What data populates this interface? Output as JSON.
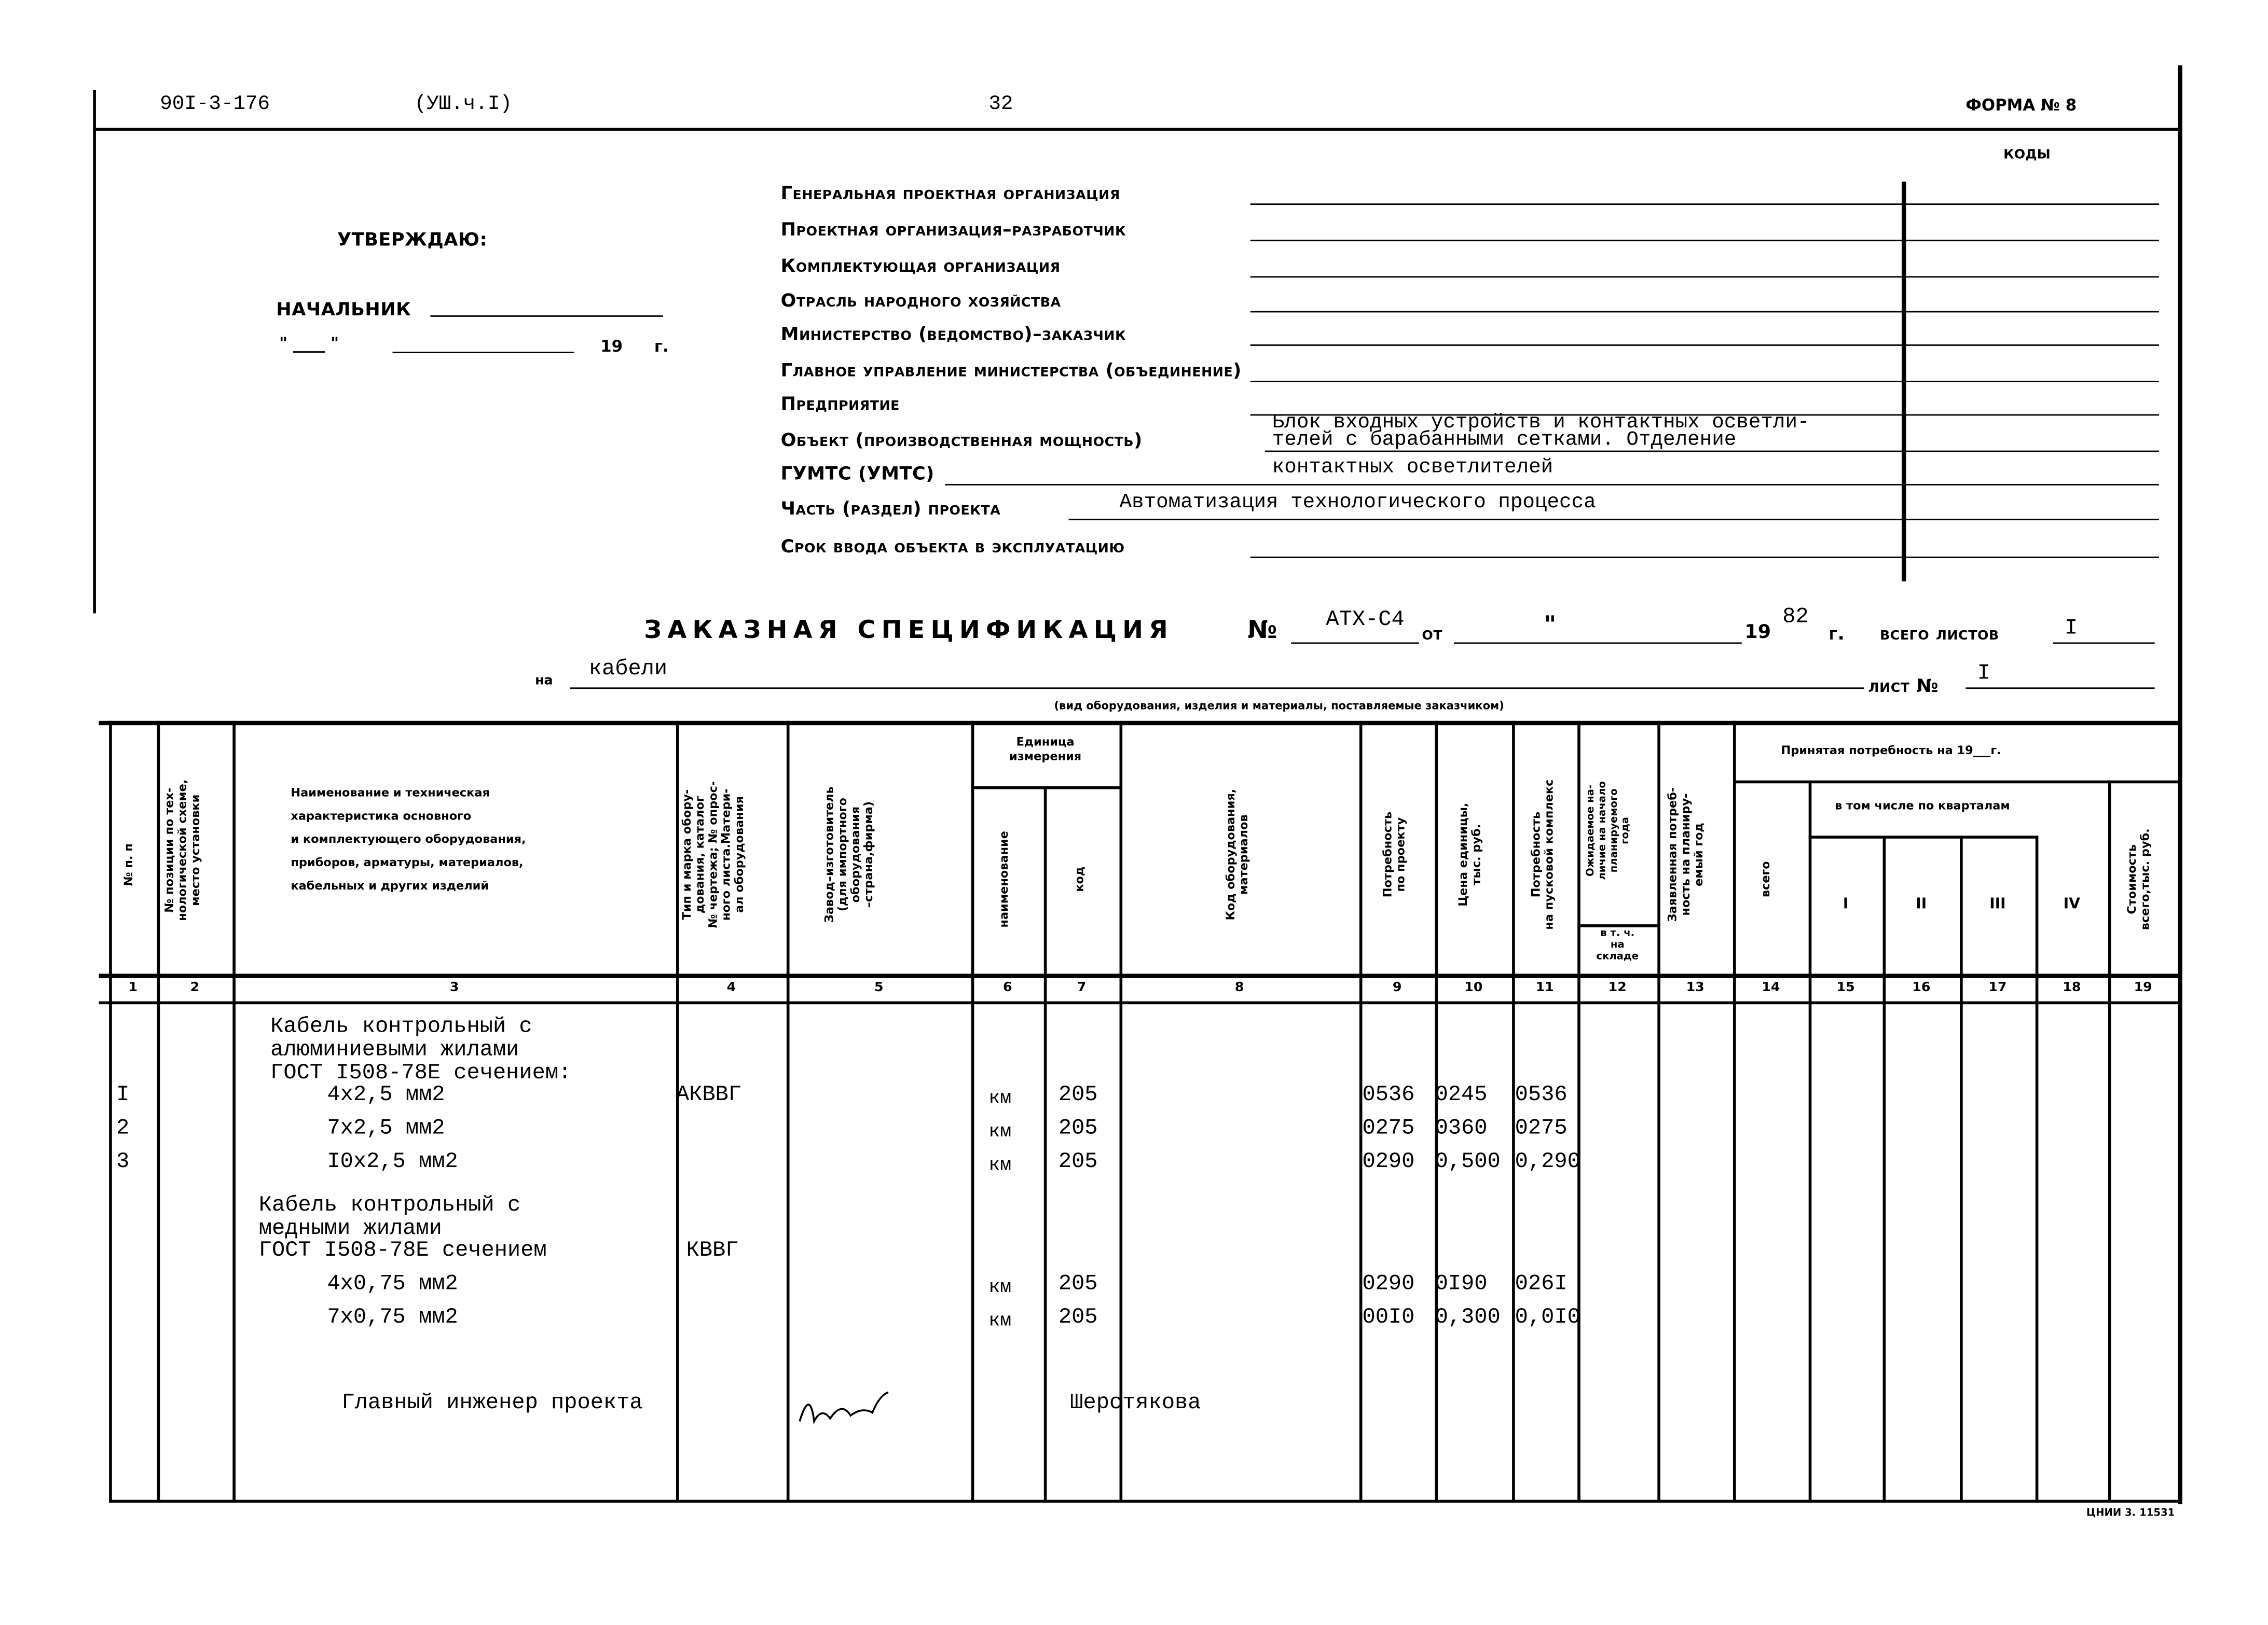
{
  "top": {
    "code": "90I-3-176",
    "part": "(УШ.ч.I)",
    "page": "32",
    "form": "ФОРМА № 8",
    "codes": "КОДЫ"
  },
  "approve": {
    "title": "УТВЕРЖДАЮ:",
    "chief": "НАЧАЛЬНИК",
    "date_prefix": "\" ____ \"",
    "year": "19",
    "year_suffix": "г."
  },
  "fields": [
    {
      "label": "Генеральная проектная организация",
      "value": ""
    },
    {
      "label": "Проектная организация–разработчик",
      "value": ""
    },
    {
      "label": "Комплектующая организация",
      "value": ""
    },
    {
      "label": "Отрасль народного хозяйства",
      "value": ""
    },
    {
      "label": "Министерство (ведомство)–заказчик",
      "value": ""
    },
    {
      "label": "Главное управление министерства (объединение)",
      "value": ""
    },
    {
      "label": "Предприятие",
      "value": ""
    },
    {
      "label": "Объект (производственная мощность)",
      "value": "Блок входных устройств и контактных осветли-",
      "value2": "телей с барабанными сетками. Отделение"
    },
    {
      "label": "ГУМТС (УМТС)",
      "value": "контактных осветлителей"
    },
    {
      "label": "Часть (раздел) проекта",
      "value": "Автоматизация технологического процесса"
    },
    {
      "label": "Срок ввода объекта в эксплуатацию",
      "value": ""
    }
  ],
  "spec": {
    "title": "ЗАКАЗНАЯ СПЕЦИФИКАЦИЯ",
    "no_label": "№",
    "no": "АТХ-С4",
    "from": "от",
    "quote": "\"",
    "year_prefix": "19",
    "year": "82",
    "year_suffix": "г.",
    "total_label": "всего листов",
    "total": "I",
    "on_label": "на",
    "on_value": "кабели",
    "sheet_label": "лист №",
    "sheet": "I",
    "caption": "(вид оборудования, изделия и материалы, поставляемые заказчиком)"
  },
  "columns": {
    "c1": "№ п. п",
    "c2": "№ позиции по тех-\nнологической схеме,\nместо установки",
    "c3": "Наименование и техническая\nхарактеристика основного\nи комплектующего оборудования,\nприборов, арматуры, материалов,\nкабельных и других изделий",
    "c4": "Тип и марка обору-\nдования, каталог\n№ чертежа; № опрос-\nного листа.Матери-\nал оборудования",
    "c5": "Завод–изготовитель\n(для импортного\nоборудования\n–страна,фирма)",
    "unit": "Единица\nизмерения",
    "c6": "наименование",
    "c7": "код",
    "c8": "Код оборудования,\nматериалов",
    "c9": "Потребность\nпо проекту",
    "c10": "Цена единицы,\nтыс. руб.",
    "c11": "Потребность\nна пусковой комплекс",
    "c12": "Ожидаемое на-\nличие на начало\nпланируемого\nгода",
    "c12b": "в т. ч.\nна\nскладе",
    "c13": "Заявленная потреб-\nность на планиру-\nемый год",
    "accepted": "Принятая потребность на 19___г.",
    "c14": "всего",
    "quarters": "в том числе по кварталам",
    "c15": "I",
    "c16": "II",
    "c17": "III",
    "c18": "IV",
    "c19": "Стоимость\nвсего,тыс. руб.",
    "numbers": [
      "1",
      "2",
      "3",
      "4",
      "5",
      "6",
      "7",
      "8",
      "9",
      "10",
      "11",
      "12",
      "13",
      "14",
      "15",
      "16",
      "17",
      "18",
      "19"
    ]
  },
  "groups": [
    {
      "title": [
        "Кабель контрольный с",
        "алюминиевыми жилами",
        "ГОСТ I508-78Е сечением:"
      ],
      "type": "АКВВГ",
      "rows": [
        {
          "no": "I",
          "name": "4х2,5 мм2",
          "unit": "км",
          "code": "205",
          "need": "0536",
          "price": "0245",
          "launch": "0536"
        },
        {
          "no": "2",
          "name": "7х2,5 мм2",
          "unit": "км",
          "code": "205",
          "need": "0275",
          "price": "0360",
          "launch": "0275"
        },
        {
          "no": "3",
          "name": "I0х2,5 мм2",
          "unit": "км",
          "code": "205",
          "need": "0290",
          "price": "0,500",
          "launch": "0,290"
        }
      ]
    },
    {
      "title": [
        "Кабель контрольный с",
        "медными жилами",
        "ГОСТ I508-78Е сечением"
      ],
      "type": "КВВГ",
      "rows": [
        {
          "no": "",
          "name": "4х0,75 мм2",
          "unit": "км",
          "code": "205",
          "need": "0290",
          "price": "0I90",
          "launch": "026I"
        },
        {
          "no": "",
          "name": "7х0,75 мм2",
          "unit": "км",
          "code": "205",
          "need": "00I0",
          "price": "0,300",
          "launch": "0,0I0"
        }
      ]
    }
  ],
  "signature": {
    "role": "Главный инженер проекта",
    "name": "Шерстякова"
  },
  "footer": "ЦНИИ 3. 11531"
}
